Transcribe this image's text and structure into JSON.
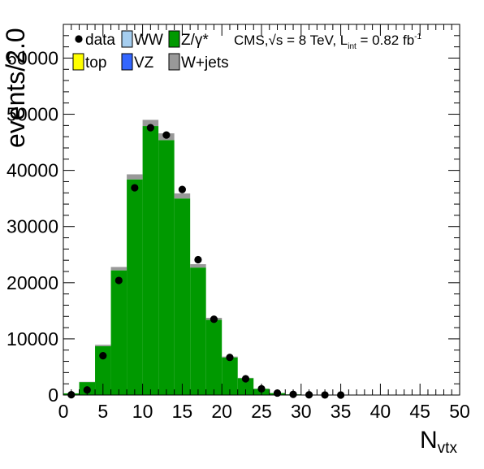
{
  "chart_data": {
    "type": "bar",
    "ylabel": "events/2.0",
    "xlabel_main": "N",
    "xlabel_sub": "vtx",
    "xlim": [
      0,
      50
    ],
    "ylim": [
      0,
      66000
    ],
    "x_ticks": [
      "0",
      "5",
      "10",
      "15",
      "20",
      "25",
      "30",
      "35",
      "40",
      "45",
      "50"
    ],
    "y_ticks": [
      "0",
      "10000",
      "20000",
      "30000",
      "40000",
      "50000",
      "60000"
    ],
    "annotation": {
      "prefix": "CMS,",
      "sqrt": "√s",
      "mid": " = 8 TeV, L",
      "sub": "int",
      "post": " = 0.82 fb",
      "sup": "-1"
    },
    "legend": [
      {
        "key": "data",
        "label": "data",
        "type": "marker",
        "color": "#000000"
      },
      {
        "key": "ww",
        "label": "WW",
        "type": "box",
        "color": "#a6cef0"
      },
      {
        "key": "zg",
        "label": "Z/γ*",
        "type": "box",
        "color": "#009900"
      },
      {
        "key": "top",
        "label": "top",
        "type": "box",
        "color": "#ffff00"
      },
      {
        "key": "vz",
        "label": "VZ",
        "type": "box",
        "color": "#3366ff"
      },
      {
        "key": "wjets",
        "label": "W+jets",
        "type": "box",
        "color": "#999999"
      }
    ],
    "bin_edges": [
      0,
      2,
      4,
      6,
      8,
      10,
      12,
      14,
      16,
      18,
      20,
      22,
      24,
      26,
      28,
      30,
      32,
      34,
      36
    ],
    "series": [
      {
        "name": "Z/γ*",
        "color": "#009900",
        "values": [
          300,
          2300,
          8700,
          22200,
          38400,
          47900,
          45400,
          35000,
          22700,
          13400,
          6700,
          3000,
          1100,
          350,
          120,
          40,
          10,
          3
        ]
      },
      {
        "name": "W+jets",
        "color": "#999999",
        "values": [
          0,
          50,
          250,
          600,
          900,
          1100,
          1200,
          900,
          600,
          350,
          150,
          60,
          20,
          8,
          3,
          1,
          0,
          0
        ]
      }
    ],
    "data_points": {
      "name": "data",
      "x": [
        1,
        3,
        5,
        7,
        9,
        11,
        13,
        15,
        17,
        19,
        21,
        23,
        25,
        27,
        29,
        31,
        33,
        35
      ],
      "y": [
        50,
        900,
        7000,
        20400,
        36900,
        47600,
        46300,
        36600,
        24100,
        13500,
        6700,
        2900,
        1100,
        350,
        120,
        40,
        10,
        3
      ]
    }
  }
}
